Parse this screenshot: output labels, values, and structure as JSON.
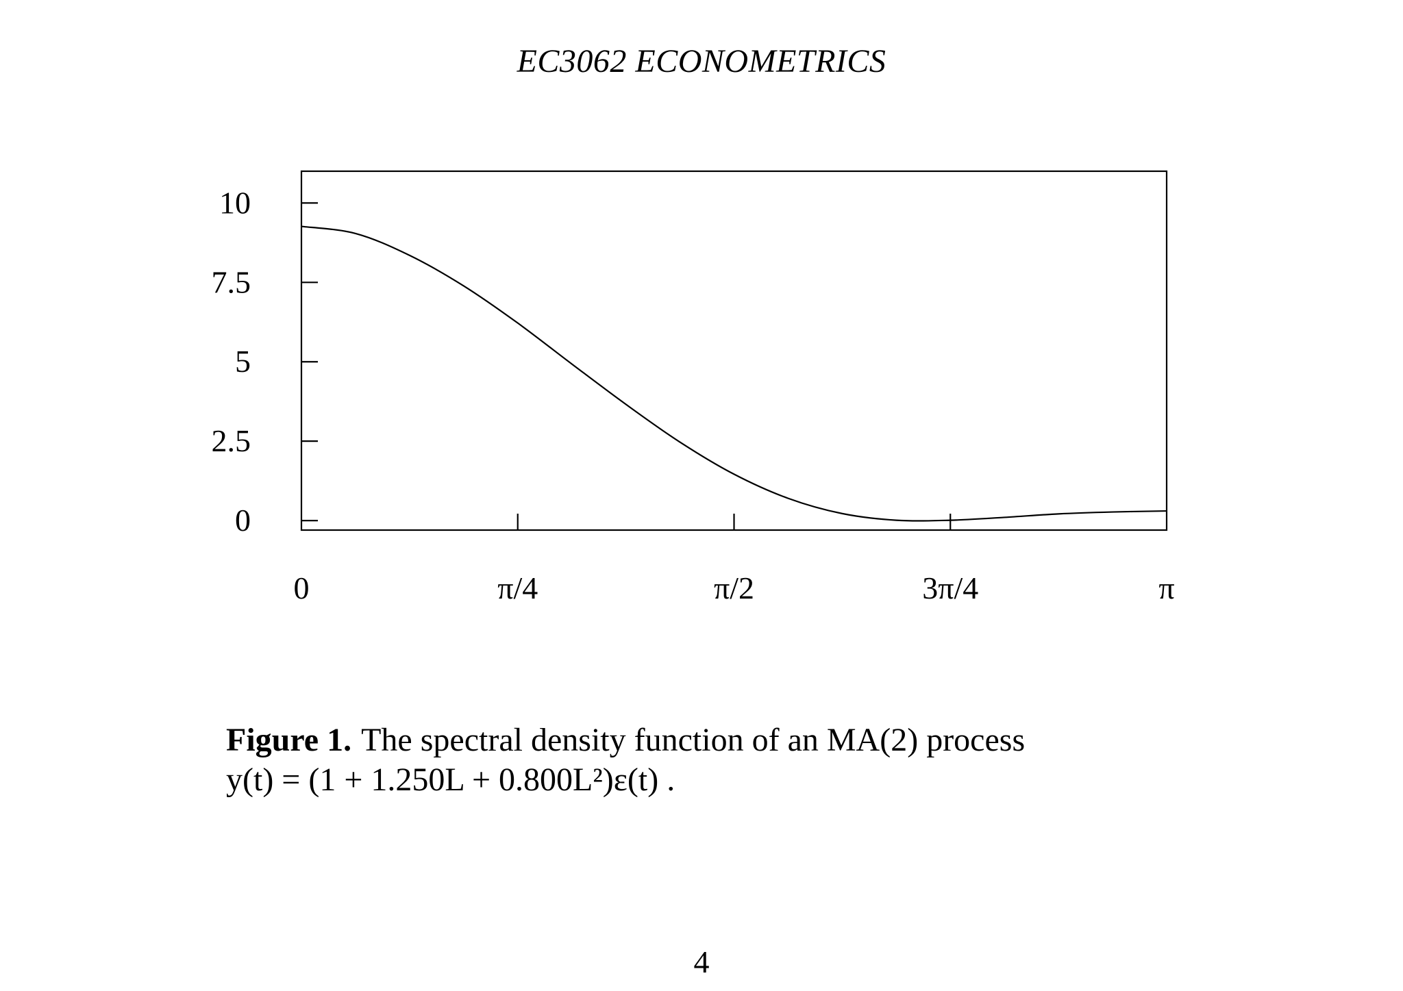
{
  "page": {
    "running_head": "EC3062 ECONOMETRICS",
    "page_number": "4"
  },
  "caption": {
    "label": "Figure 1.",
    "text": "The spectral density function of an MA(2) process",
    "formula": "y(t) = (1 + 1.250L + 0.800L²)ε(t) ."
  },
  "chart_data": {
    "type": "line",
    "title": "",
    "xlabel": "",
    "ylabel": "",
    "xlim": [
      0,
      3.14159
    ],
    "ylim": [
      -0.3,
      11
    ],
    "x_ticks": [
      0,
      0.7854,
      1.5708,
      2.3562,
      3.14159
    ],
    "x_tick_labels": [
      "0",
      "π/4",
      "π/2",
      "3π/4",
      "π"
    ],
    "y_ticks": [
      0,
      2.5,
      5,
      7.5,
      10
    ],
    "y_tick_labels": [
      "0",
      "2.5",
      "5",
      "7.5",
      "10"
    ],
    "grid": false,
    "legend": "none",
    "series": [
      {
        "x": [
          0,
          0.1963,
          0.3927,
          0.589,
          0.7854,
          0.9817,
          1.1781,
          1.3744,
          1.5708,
          1.7671,
          1.9635,
          2.1598,
          2.3562,
          2.5525,
          2.7489,
          2.9452,
          3.14159
        ],
        "values": [
          9.2625,
          9.04,
          8.35,
          7.39,
          6.22,
          4.93,
          3.66,
          2.47,
          1.46,
          0.7,
          0.22,
          0.01,
          0.01,
          0.1,
          0.21,
          0.27,
          0.3025
        ]
      }
    ]
  }
}
